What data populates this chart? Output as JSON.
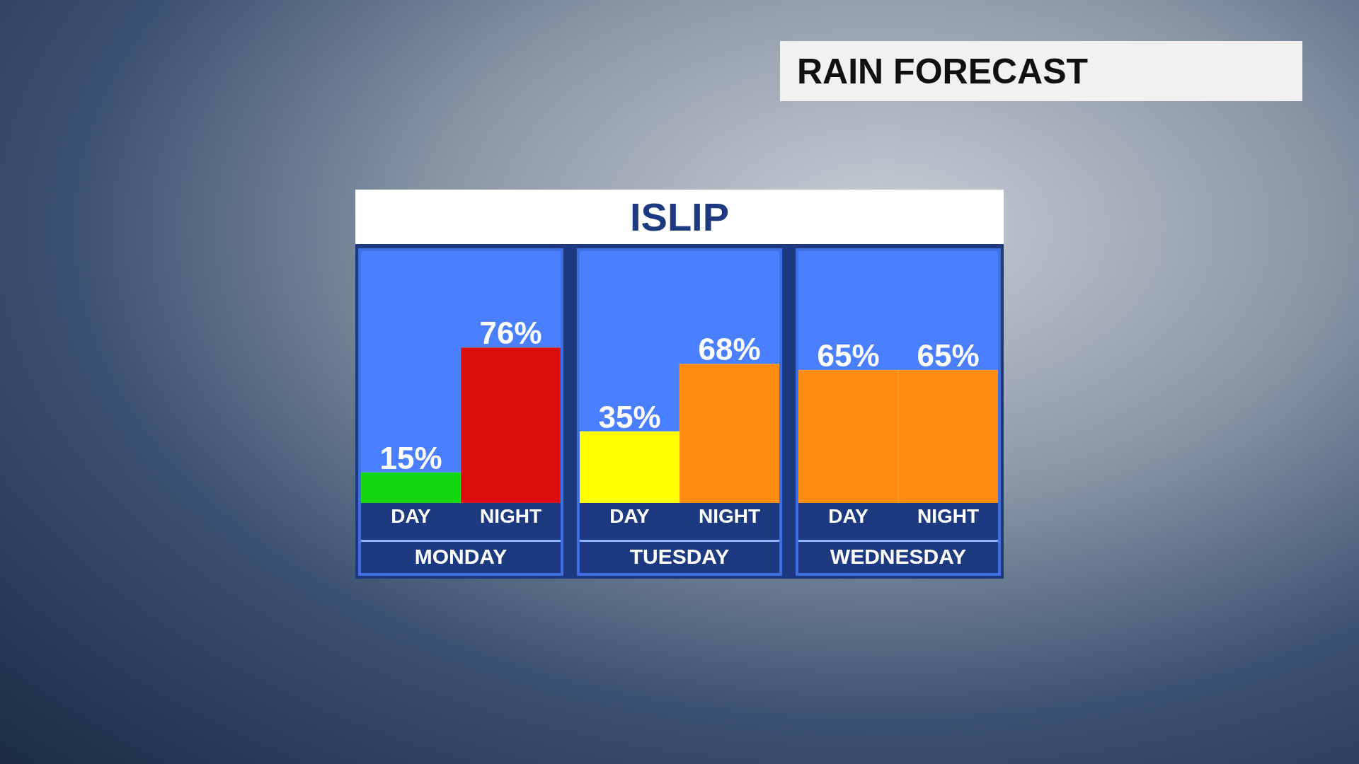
{
  "chart_data": {
    "type": "bar",
    "title": "RAIN FORECAST",
    "subtitle": "ISLIP",
    "categories": [
      "DAY",
      "NIGHT",
      "DAY",
      "NIGHT",
      "DAY",
      "NIGHT"
    ],
    "values": [
      15,
      76,
      35,
      68,
      65,
      65
    ],
    "colors": [
      "#12d612",
      "#dc0d0d",
      "#ffff00",
      "#ff8c10",
      "#ff8c10",
      "#ff8c10"
    ],
    "annotations": [
      "MONDAY",
      "TUESDAY",
      "WEDNESDAY"
    ],
    "value_labels": [
      "15%",
      "76%",
      "35%",
      "68%",
      "65%",
      "65%"
    ],
    "grid": false,
    "legend": false
  }
}
